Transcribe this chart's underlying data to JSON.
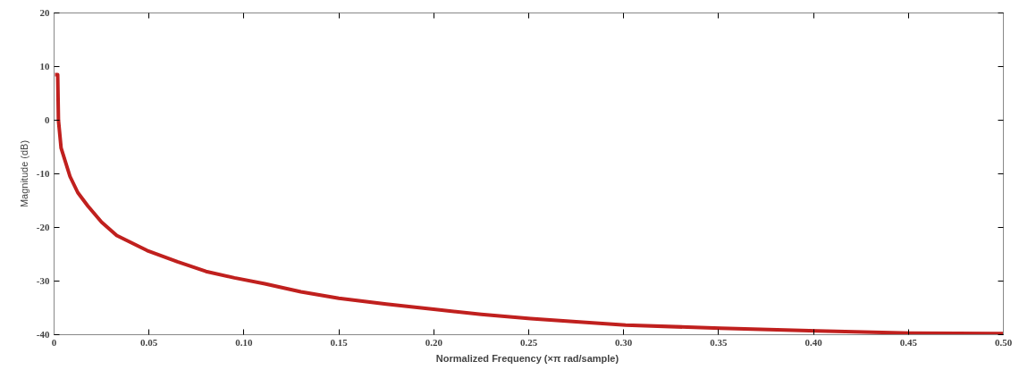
{
  "chart_data": {
    "type": "line",
    "xlabel": "Normalized Frequency  (×π rad/sample)",
    "ylabel": "Magnitude (dB)",
    "x": [
      0.0005,
      0.0019,
      0.0023,
      0.0037,
      0.0084,
      0.0125,
      0.0178,
      0.025,
      0.033,
      0.049,
      0.065,
      0.08,
      0.095,
      0.111,
      0.13,
      0.15,
      0.175,
      0.201,
      0.225,
      0.251,
      0.275,
      0.301,
      0.351,
      0.402,
      0.451,
      0.5
    ],
    "series": [
      {
        "color": "#c0201e",
        "values": [
          8.5,
          8.5,
          0,
          -5.2,
          -10.5,
          -13.5,
          -16,
          -19,
          -21.5,
          -24.3,
          -26.4,
          -28.2,
          -29.4,
          -30.5,
          -32,
          -33.2,
          -34.3,
          -35.3,
          -36.2,
          -37,
          -37.6,
          -38.2,
          -38.8,
          -39.3,
          -39.7,
          -39.8
        ]
      }
    ],
    "xlim": [
      0,
      0.5
    ],
    "ylim": [
      -40,
      20
    ],
    "xticks": [
      0,
      {
        "value": 0.05,
        "label": "0.05"
      },
      {
        "value": 0.1,
        "label": "0.10"
      },
      {
        "value": 0.15,
        "label": "0.15"
      },
      {
        "value": 0.2,
        "label": "0.20"
      },
      {
        "value": 0.25,
        "label": "0.25"
      },
      {
        "value": 0.3,
        "label": "0.30"
      },
      {
        "value": 0.35,
        "label": "0.35"
      },
      {
        "value": 0.4,
        "label": "0.40"
      },
      {
        "value": 0.45,
        "label": "0.45"
      },
      {
        "value": 0.5,
        "label": "0.50"
      }
    ],
    "yticks": [
      -40,
      -30,
      -20,
      -10,
      0,
      10,
      20
    ],
    "grid": false,
    "marker": "none",
    "line_style": "solid"
  }
}
